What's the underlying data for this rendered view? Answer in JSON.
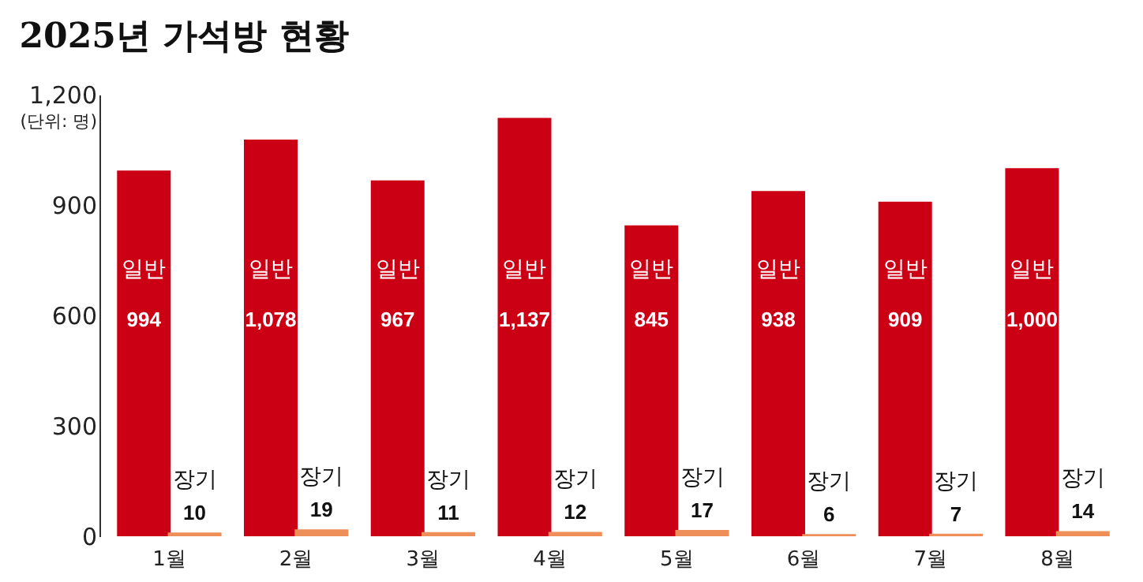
{
  "chart_data": {
    "type": "bar",
    "title": "2025년 가석방 현황",
    "ylabel": "(단위: 명)",
    "categories": [
      "1월",
      "2월",
      "3월",
      "4월",
      "5월",
      "6월",
      "7월",
      "8월"
    ],
    "series": [
      {
        "name": "일반",
        "color": "#cc0015",
        "values": [
          994,
          1078,
          967,
          1137,
          845,
          938,
          909,
          1000
        ],
        "value_labels": [
          "994",
          "1,078",
          "967",
          "1,137",
          "845",
          "938",
          "909",
          "1,000"
        ]
      },
      {
        "name": "장기",
        "color": "#ee8e58",
        "values": [
          10,
          19,
          11,
          12,
          17,
          6,
          7,
          14
        ],
        "value_labels": [
          "10",
          "19",
          "11",
          "12",
          "17",
          "6",
          "7",
          "14"
        ]
      }
    ],
    "ylim": [
      0,
      1200
    ],
    "yticks": [
      0,
      300,
      600,
      900,
      {
        "value": 1200,
        "label": "1,200"
      }
    ],
    "grid": false,
    "legend": false
  }
}
